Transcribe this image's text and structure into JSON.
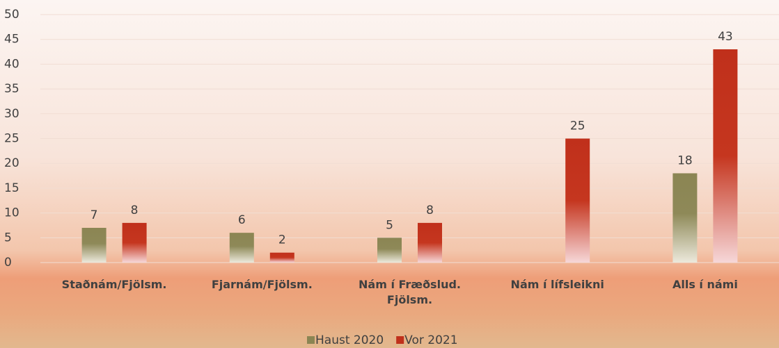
{
  "chart_data": {
    "type": "bar",
    "categories": [
      "Staðnám/Fjölsm.",
      "Fjarnám/Fjölsm.",
      "Nám í Fræðslud. Fjölsm.",
      "Nám í lífsleikni",
      "Alls í námi"
    ],
    "series": [
      {
        "name": "Haust 2020",
        "color": "#8b8553",
        "values": [
          7,
          6,
          5,
          null,
          18
        ]
      },
      {
        "name": "Vor 2021",
        "color": "#c0301b",
        "values": [
          8,
          2,
          8,
          25,
          43
        ]
      }
    ],
    "ylim": [
      0,
      50
    ],
    "yticks": [
      0,
      5,
      10,
      15,
      20,
      25,
      30,
      35,
      40,
      45,
      50
    ],
    "grid": true,
    "legend": "bottom"
  }
}
